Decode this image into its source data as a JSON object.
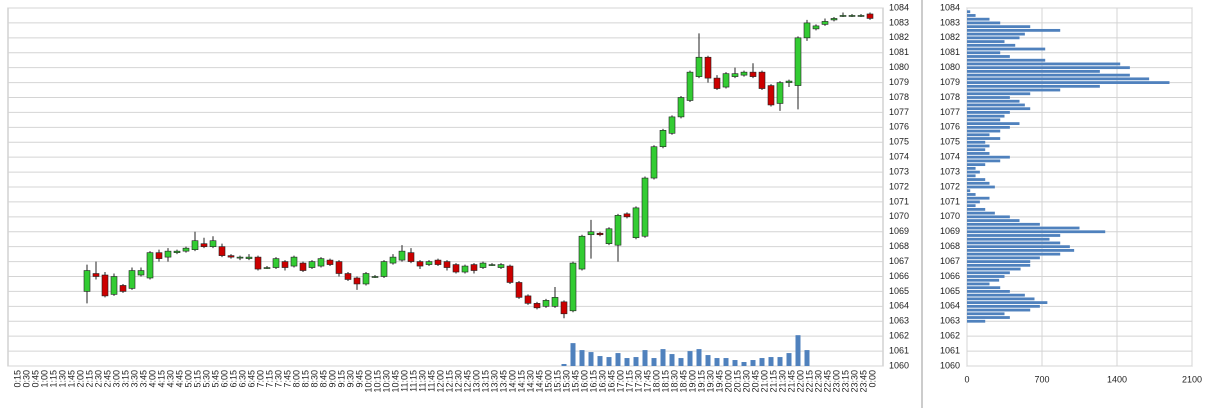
{
  "chart_data": [
    {
      "type": "candlestick",
      "categories": [
        "0:15",
        "0:30",
        "0:45",
        "1:00",
        "1:15",
        "1:30",
        "1:45",
        "2:00",
        "2:15",
        "2:30",
        "2:45",
        "3:00",
        "3:15",
        "3:30",
        "3:45",
        "4:00",
        "4:15",
        "4:30",
        "4:45",
        "5:00",
        "5:15",
        "5:30",
        "5:45",
        "6:00",
        "6:15",
        "6:30",
        "6:45",
        "7:00",
        "7:15",
        "7:30",
        "7:45",
        "8:00",
        "8:15",
        "8:30",
        "8:45",
        "9:00",
        "9:15",
        "9:30",
        "9:45",
        "10:00",
        "10:15",
        "10:30",
        "10:45",
        "11:00",
        "11:15",
        "11:30",
        "11:45",
        "12:00",
        "12:15",
        "12:30",
        "12:45",
        "13:00",
        "13:15",
        "13:30",
        "13:45",
        "14:00",
        "14:15",
        "14:30",
        "14:45",
        "15:00",
        "15:15",
        "15:30",
        "15:45",
        "16:00",
        "16:15",
        "16:30",
        "16:45",
        "17:00",
        "17:15",
        "17:30",
        "17:45",
        "18:00",
        "18:15",
        "18:30",
        "18:45",
        "19:00",
        "19:15",
        "19:30",
        "19:45",
        "20:00",
        "20:15",
        "20:30",
        "20:45",
        "21:00",
        "21:15",
        "21:30",
        "21:45",
        "22:00",
        "22:15",
        "22:30",
        "22:45",
        "23:00",
        "23:15",
        "23:30",
        "23:45",
        "0:00"
      ],
      "open": [
        null,
        null,
        null,
        null,
        null,
        null,
        null,
        null,
        1065.0,
        1066.2,
        1066.1,
        1064.8,
        1065.4,
        1065.2,
        1066.1,
        1065.9,
        1067.6,
        1067.3,
        1067.6,
        1067.7,
        1067.8,
        1068.2,
        1068.0,
        1068.0,
        1067.4,
        1067.3,
        1067.2,
        1067.3,
        1066.6,
        1066.6,
        1067.0,
        1066.7,
        1066.9,
        1066.6,
        1066.7,
        1067.1,
        1067.0,
        1066.2,
        1065.9,
        1065.5,
        1066.0,
        1066.0,
        1066.9,
        1067.1,
        1067.6,
        1067.0,
        1066.8,
        1067.1,
        1067.0,
        1066.8,
        1066.3,
        1066.8,
        1066.6,
        1066.8,
        1066.6,
        1066.7,
        1065.6,
        1064.7,
        1064.2,
        1064.0,
        1064.0,
        1064.3,
        1063.7,
        1066.5,
        1068.8,
        1068.9,
        1068.2,
        1068.1,
        1070.2,
        1068.6,
        1068.7,
        1072.6,
        1074.7,
        1075.6,
        1076.7,
        1077.8,
        1079.4,
        1080.7,
        1079.3,
        1078.7,
        1079.4,
        1079.5,
        1079.7,
        1079.7,
        1078.8,
        1077.6,
        1079.0,
        1078.8,
        1082.0,
        1082.6,
        1082.9,
        1083.2,
        1083.5,
        1083.5,
        1083.5,
        1083.6
      ],
      "high": [
        null,
        null,
        null,
        null,
        null,
        null,
        null,
        null,
        1066.8,
        1067.0,
        1066.3,
        1066.2,
        1065.5,
        1066.6,
        1066.6,
        1067.7,
        1067.8,
        1067.9,
        1067.8,
        1068.0,
        1069.0,
        1068.6,
        1068.7,
        1068.2,
        1067.5,
        1067.4,
        1067.5,
        1067.4,
        1066.7,
        1067.3,
        1067.1,
        1067.4,
        1067.0,
        1067.1,
        1067.3,
        1067.2,
        1067.1,
        1066.3,
        1066.0,
        1066.3,
        1066.1,
        1067.1,
        1067.5,
        1068.1,
        1067.9,
        1067.1,
        1067.1,
        1067.2,
        1067.1,
        1066.9,
        1066.8,
        1066.9,
        1067.0,
        1066.9,
        1066.9,
        1066.8,
        1065.7,
        1064.8,
        1064.3,
        1064.5,
        1065.3,
        1064.4,
        1067.0,
        1068.8,
        1069.8,
        1069.0,
        1069.3,
        1070.2,
        1070.3,
        1070.7,
        1072.7,
        1074.8,
        1075.9,
        1076.8,
        1078.1,
        1079.8,
        1082.3,
        1080.8,
        1079.5,
        1079.7,
        1080.0,
        1079.8,
        1080.3,
        1079.8,
        1078.9,
        1079.1,
        1079.2,
        1082.1,
        1083.2,
        1082.9,
        1083.3,
        1083.4,
        1083.7,
        1083.6,
        1083.6,
        1083.7
      ],
      "low": [
        null,
        null,
        null,
        null,
        null,
        null,
        null,
        null,
        1064.2,
        1065.8,
        1064.6,
        1064.7,
        1064.9,
        1065.1,
        1066.0,
        1065.8,
        1067.0,
        1067.0,
        1067.5,
        1067.6,
        1067.7,
        1067.9,
        1067.9,
        1067.3,
        1067.2,
        1067.1,
        1067.1,
        1066.4,
        1066.5,
        1066.5,
        1066.4,
        1066.6,
        1066.3,
        1066.5,
        1066.6,
        1066.7,
        1066.0,
        1065.7,
        1065.1,
        1065.4,
        1065.9,
        1065.9,
        1066.8,
        1067.0,
        1066.9,
        1066.5,
        1066.7,
        1066.7,
        1066.4,
        1066.2,
        1066.2,
        1066.2,
        1066.5,
        1066.7,
        1066.5,
        1065.5,
        1064.5,
        1064.1,
        1063.8,
        1063.9,
        1063.9,
        1063.2,
        1063.6,
        1066.4,
        1067.2,
        1068.7,
        1068.1,
        1067.0,
        1069.9,
        1068.5,
        1068.6,
        1072.5,
        1074.6,
        1075.5,
        1076.6,
        1077.7,
        1079.3,
        1079.0,
        1078.5,
        1078.6,
        1079.3,
        1079.4,
        1079.3,
        1078.5,
        1077.4,
        1077.1,
        1078.7,
        1077.2,
        1081.8,
        1082.5,
        1082.8,
        1083.1,
        1083.4,
        1083.4,
        1083.4,
        1083.2
      ],
      "close": [
        null,
        null,
        null,
        null,
        null,
        null,
        null,
        null,
        1066.4,
        1066.0,
        1064.7,
        1066.0,
        1065.0,
        1066.4,
        1066.4,
        1067.6,
        1067.2,
        1067.7,
        1067.7,
        1067.9,
        1068.4,
        1068.0,
        1068.4,
        1067.4,
        1067.3,
        1067.3,
        1067.3,
        1066.5,
        1066.6,
        1067.2,
        1066.6,
        1067.3,
        1066.4,
        1067.0,
        1067.2,
        1066.8,
        1066.2,
        1065.8,
        1065.5,
        1066.2,
        1066.0,
        1067.0,
        1067.3,
        1067.7,
        1067.0,
        1066.7,
        1067.0,
        1066.8,
        1066.6,
        1066.3,
        1066.7,
        1066.4,
        1066.9,
        1066.8,
        1066.8,
        1065.6,
        1064.6,
        1064.2,
        1063.9,
        1064.4,
        1064.6,
        1063.5,
        1066.9,
        1068.7,
        1069.0,
        1068.8,
        1069.2,
        1070.1,
        1070.0,
        1070.6,
        1072.6,
        1074.7,
        1075.8,
        1076.7,
        1078.0,
        1079.7,
        1080.7,
        1079.3,
        1078.6,
        1079.6,
        1079.6,
        1079.7,
        1079.4,
        1078.6,
        1077.5,
        1079.0,
        1079.1,
        1082.0,
        1083.0,
        1082.8,
        1083.1,
        1083.3,
        1083.5,
        1083.5,
        1083.5,
        1083.3
      ],
      "volume": [
        null,
        null,
        null,
        null,
        null,
        null,
        null,
        null,
        null,
        null,
        null,
        null,
        null,
        null,
        null,
        null,
        null,
        null,
        null,
        null,
        null,
        null,
        null,
        null,
        null,
        null,
        null,
        null,
        null,
        null,
        null,
        null,
        null,
        null,
        null,
        null,
        null,
        null,
        null,
        null,
        null,
        null,
        null,
        null,
        null,
        null,
        null,
        null,
        null,
        null,
        null,
        null,
        null,
        null,
        null,
        null,
        null,
        null,
        null,
        null,
        null,
        2,
        23,
        16,
        14,
        10,
        9,
        13,
        8,
        9,
        16,
        8,
        17,
        12,
        8,
        15,
        17,
        11,
        8,
        8,
        6,
        4,
        6,
        8,
        9,
        9,
        13,
        31,
        16,
        null,
        null,
        null,
        null,
        null,
        null,
        null
      ],
      "up_color": "#33cc33",
      "down_color": "#cc0000",
      "volume_color": "#4f81bd",
      "ylim": [
        1060,
        1084
      ],
      "y2lim": [
        0,
        360
      ],
      "yticks": [
        1060,
        1061,
        1062,
        1063,
        1064,
        1065,
        1066,
        1067,
        1068,
        1069,
        1070,
        1071,
        1072,
        1073,
        1074,
        1075,
        1076,
        1077,
        1078,
        1079,
        1080,
        1081,
        1082,
        1083,
        1084
      ],
      "grid": true
    },
    {
      "type": "hbar",
      "y": [
        1063,
        1063.25,
        1063.5,
        1063.75,
        1064,
        1064.25,
        1064.5,
        1064.75,
        1065,
        1065.25,
        1065.5,
        1065.75,
        1066,
        1066.25,
        1066.5,
        1066.75,
        1067,
        1067.25,
        1067.5,
        1067.75,
        1068,
        1068.25,
        1068.5,
        1068.75,
        1069,
        1069.25,
        1069.5,
        1069.75,
        1070,
        1070.25,
        1070.5,
        1070.75,
        1071,
        1071.25,
        1071.5,
        1071.75,
        1072,
        1072.25,
        1072.5,
        1072.75,
        1073,
        1073.25,
        1073.5,
        1073.75,
        1074,
        1074.25,
        1074.5,
        1074.75,
        1075,
        1075.25,
        1075.5,
        1075.75,
        1076,
        1076.25,
        1076.5,
        1076.75,
        1077,
        1077.25,
        1077.5,
        1077.75,
        1078,
        1078.25,
        1078.5,
        1078.75,
        1079,
        1079.25,
        1079.5,
        1079.75,
        1080,
        1080.25,
        1080.5,
        1080.75,
        1081,
        1081.25,
        1081.5,
        1081.75,
        1082,
        1082.25,
        1082.5,
        1082.75,
        1083,
        1083.25,
        1083.5,
        1083.75
      ],
      "values": [
        170,
        400,
        350,
        590,
        680,
        750,
        630,
        540,
        400,
        310,
        210,
        300,
        350,
        400,
        500,
        590,
        590,
        680,
        870,
        1000,
        960,
        870,
        770,
        870,
        1290,
        1050,
        680,
        490,
        400,
        260,
        170,
        80,
        120,
        210,
        80,
        30,
        260,
        210,
        170,
        80,
        120,
        80,
        170,
        310,
        400,
        210,
        170,
        210,
        170,
        310,
        210,
        310,
        400,
        490,
        310,
        350,
        400,
        590,
        540,
        490,
        400,
        590,
        870,
        1240,
        1890,
        1700,
        1520,
        1240,
        1520,
        1430,
        730,
        400,
        310,
        730,
        450,
        350,
        490,
        540,
        870,
        590,
        310,
        210,
        80,
        30
      ],
      "color": "#4f81bd",
      "xlim": [
        0,
        2100
      ],
      "xticks": [
        0,
        700,
        1400,
        2100
      ],
      "ylim": [
        1060,
        1084
      ],
      "yticks": [
        1060,
        1061,
        1062,
        1063,
        1064,
        1065,
        1066,
        1067,
        1068,
        1069,
        1070,
        1071,
        1072,
        1073,
        1074,
        1075,
        1076,
        1077,
        1078,
        1079,
        1080,
        1081,
        1082,
        1083,
        1084
      ],
      "grid": true
    }
  ]
}
